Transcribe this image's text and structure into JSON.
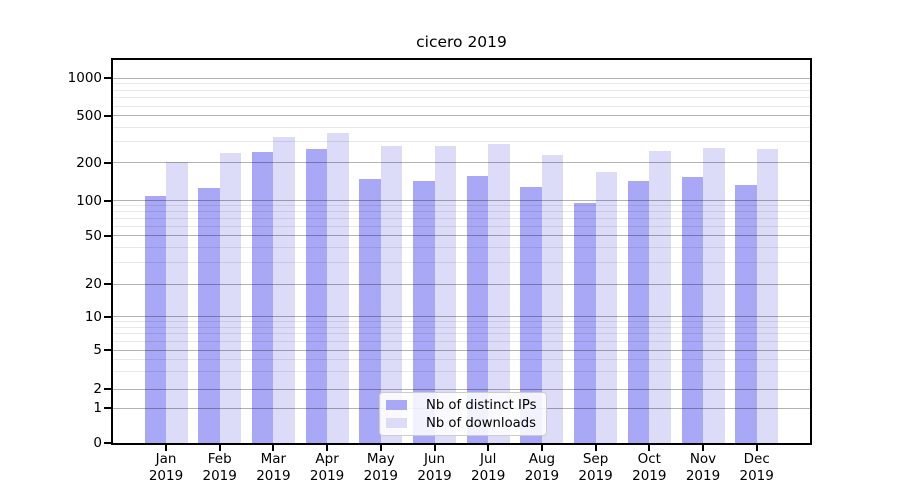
{
  "title": "cicero 2019",
  "legend": {
    "items": [
      {
        "label": "Nb of distinct IPs",
        "color": "#a8a8f6"
      },
      {
        "label": "Nb of downloads",
        "color": "#dcdcf9"
      }
    ]
  },
  "chart_data": {
    "type": "bar",
    "title": "cicero 2019",
    "categories": [
      "Jan",
      "Feb",
      "Mar",
      "Apr",
      "May",
      "Jun",
      "Jul",
      "Aug",
      "Sep",
      "Oct",
      "Nov",
      "Dec"
    ],
    "year_label": "2019",
    "series": [
      {
        "name": "Nb of distinct IPs",
        "color": "#a8a8f6",
        "values": [
          108,
          125,
          245,
          260,
          148,
          142,
          157,
          128,
          95,
          144,
          153,
          134
        ]
      },
      {
        "name": "Nb of downloads",
        "color": "#dcdcf9",
        "values": [
          202,
          243,
          333,
          356,
          278,
          279,
          290,
          234,
          168,
          253,
          265,
          260
        ]
      }
    ],
    "xlabel": "",
    "ylabel": "",
    "yscale": "symlog",
    "yticks": [
      0,
      1,
      2,
      5,
      10,
      20,
      50,
      100,
      200,
      500,
      1000
    ],
    "yminorticks": [
      3,
      4,
      6,
      7,
      8,
      9,
      30,
      40,
      60,
      70,
      80,
      90,
      300,
      400,
      600,
      700,
      800,
      900
    ],
    "ylim": [
      0,
      1400
    ],
    "grid": "horizontal major+minor",
    "legend_position": "lower center"
  }
}
